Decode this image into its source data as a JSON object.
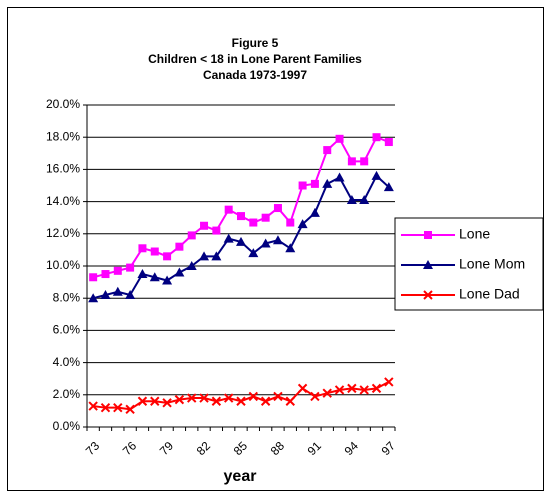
{
  "chart_data": {
    "type": "line",
    "title": [
      "Figure 5",
      "Children < 18 in Lone Parent Families",
      "Canada 1973-1997"
    ],
    "x_label": "year",
    "categories": [
      "73",
      null,
      null,
      "76",
      null,
      null,
      "79",
      null,
      null,
      "82",
      null,
      null,
      "85",
      null,
      null,
      "88",
      null,
      null,
      "91",
      null,
      null,
      "94",
      null,
      null,
      "97"
    ],
    "series": [
      {
        "name": "Lone",
        "color": "#ff00ff",
        "marker": "square",
        "values": [
          9.3,
          9.5,
          9.7,
          9.9,
          11.1,
          10.9,
          10.6,
          11.2,
          11.9,
          12.5,
          12.2,
          13.5,
          13.1,
          12.7,
          13.0,
          13.6,
          12.7,
          15.0,
          15.1,
          17.2,
          17.9,
          16.5,
          16.5,
          18.0,
          17.7
        ]
      },
      {
        "name": "Lone Mom",
        "color": "#000080",
        "marker": "triangle",
        "values": [
          8.0,
          8.2,
          8.4,
          8.2,
          9.5,
          9.3,
          9.1,
          9.6,
          10.0,
          10.6,
          10.6,
          11.7,
          11.5,
          10.8,
          11.4,
          11.6,
          11.1,
          12.6,
          13.3,
          15.1,
          15.5,
          14.1,
          14.1,
          15.6,
          14.9
        ]
      },
      {
        "name": "Lone Dad",
        "color": "#ff0000",
        "marker": "x",
        "values": [
          1.3,
          1.2,
          1.2,
          1.1,
          1.6,
          1.6,
          1.5,
          1.7,
          1.8,
          1.8,
          1.6,
          1.8,
          1.6,
          1.9,
          1.6,
          1.9,
          1.6,
          2.4,
          1.9,
          2.1,
          2.3,
          2.4,
          2.3,
          2.4,
          2.8
        ]
      }
    ],
    "ylim": [
      0,
      20
    ],
    "yticks": [
      {
        "value": 0,
        "label": "0.0%"
      },
      {
        "value": 2,
        "label": "2.0%"
      },
      {
        "value": 4,
        "label": "4.0%"
      },
      {
        "value": 6,
        "label": "6.0%"
      },
      {
        "value": 8,
        "label": "8.0%"
      },
      {
        "value": 10,
        "label": "10.0%"
      },
      {
        "value": 12,
        "label": "12.0%"
      },
      {
        "value": 14,
        "label": "14.0%"
      },
      {
        "value": 16,
        "label": "16.0%"
      },
      {
        "value": 18,
        "label": "18.0%"
      },
      {
        "value": 20,
        "label": "20.0%"
      }
    ],
    "grid": true,
    "legend": "right"
  }
}
